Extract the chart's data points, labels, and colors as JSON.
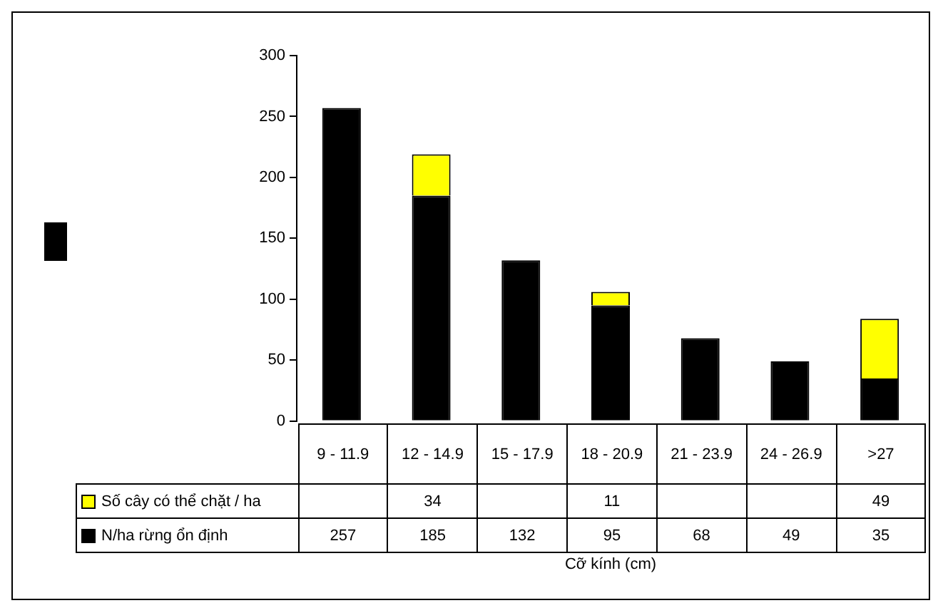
{
  "chart_data": {
    "type": "bar",
    "annotations": [
      "Cỡ kính (cm)"
    ],
    "categories": [
      "9 - 11.9",
      "12 - 14.9",
      "15 - 17.9",
      "18 - 20.9",
      "21 - 23.9",
      "24 - 26.9",
      ">27"
    ],
    "series": [
      {
        "name": "N/ha rừng ổn định",
        "color": "#000000",
        "values": [
          257,
          185,
          132,
          95,
          68,
          49,
          35
        ]
      },
      {
        "name": "Số cây có thể chặt / ha",
        "color": "#ffff00",
        "values": [
          null,
          34,
          null,
          11,
          null,
          null,
          49
        ]
      }
    ],
    "stacked": true,
    "data_labels": true,
    "legend": "bottom left",
    "grid": false,
    "ylim": [
      0,
      300
    ],
    "yticks": [
      0,
      50,
      100,
      150,
      200,
      250,
      300
    ]
  }
}
